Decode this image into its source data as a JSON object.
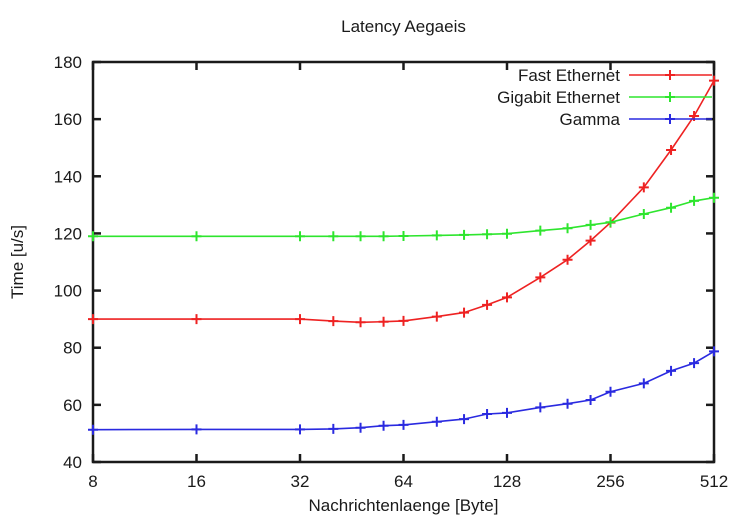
{
  "chart_data": {
    "type": "line",
    "title": "Latency Aegaeis",
    "xlabel": "Nachrichtenlaenge [Byte]",
    "ylabel": "Time [u/s]",
    "x_scale": "log2",
    "xlim": [
      8,
      512
    ],
    "ylim": [
      40,
      180
    ],
    "x_ticks": [
      8,
      16,
      32,
      64,
      128,
      256,
      512
    ],
    "y_ticks": [
      40,
      60,
      80,
      100,
      120,
      140,
      160,
      180
    ],
    "grid": false,
    "legend_position": "top-right-inside",
    "marker": "plus",
    "axis_color": "#1a1a1a",
    "background_color": "#ffffff",
    "x": [
      8,
      16,
      32,
      40,
      48,
      56,
      64,
      80,
      96,
      112,
      128,
      160,
      192,
      224,
      256,
      320,
      384,
      448,
      512
    ],
    "series": [
      {
        "name": "Fast Ethernet",
        "color": "#ee2222",
        "values": [
          90,
          90,
          90,
          89.3,
          88.9,
          89.1,
          89.4,
          90.9,
          92.3,
          95,
          97.6,
          104.6,
          110.8,
          117.5,
          123.8,
          136.1,
          149.2,
          161.1,
          173.5
        ]
      },
      {
        "name": "Gigabit Ethernet",
        "color": "#2ee52e",
        "values": [
          119,
          119,
          119,
          119,
          119,
          119,
          119.1,
          119.3,
          119.5,
          119.7,
          119.9,
          121,
          121.8,
          123,
          123.9,
          126.8,
          129,
          131.4,
          132.5
        ]
      },
      {
        "name": "Gamma",
        "color": "#2a2ae0",
        "values": [
          51.3,
          51.4,
          51.4,
          51.6,
          52,
          52.7,
          53,
          54.1,
          55,
          56.8,
          57.2,
          59.1,
          60.4,
          61.7,
          64.6,
          67.5,
          71.9,
          74.6,
          78.7
        ]
      }
    ]
  }
}
